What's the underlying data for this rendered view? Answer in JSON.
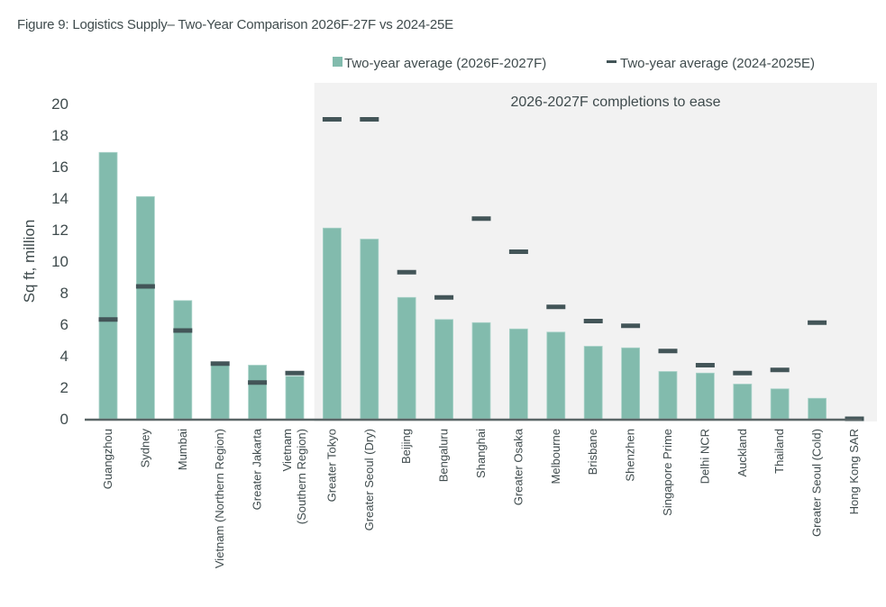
{
  "figure": {
    "title": "Figure 9: Logistics Supply– Two-Year Comparison 2026F-27F vs 2024-25E"
  },
  "colors": {
    "bar": "#82bbad",
    "marker": "#435558",
    "shade": "#f2f2f2",
    "axis": "#5a6667",
    "text": "#3f4b4d"
  },
  "chart_data": {
    "type": "bar",
    "title": "Figure 9: Logistics Supply– Two-Year Comparison 2026F-27F vs 2024-25E",
    "xlabel": "",
    "ylabel": "Sq ft, million",
    "ylim": [
      0,
      20
    ],
    "yticks": [
      0,
      2,
      4,
      6,
      8,
      10,
      12,
      14,
      16,
      18,
      20
    ],
    "grid": false,
    "legend_position": "top-right",
    "annotation": {
      "text": "2026-2027F completions to ease",
      "shaded_from_category": "Greater Tokyo",
      "shaded_to_category": "Hong Kong SAR"
    },
    "categories": [
      "Guangzhou",
      "Sydney",
      "Mumbai",
      "Vietnam (Northern Region)",
      "Greater Jakarta",
      "Vietnam\n(Southern Region)",
      "Greater Tokyo",
      "Greater Seoul (Dry)",
      "Beijing",
      "Bengaluru",
      "Shanghai",
      "Greater Osaka",
      "Melbourne",
      "Brisbane",
      "Shenzhen",
      "Singapore Prime",
      "Delhi NCR",
      "Auckland",
      "Thailand",
      "Greater Seoul (Cold)",
      "Hong Kong SAR"
    ],
    "series": [
      {
        "name": "Two-year average (2026F-2027F)",
        "kind": "bar",
        "values": [
          16.9,
          14.1,
          7.5,
          3.4,
          3.4,
          2.7,
          12.1,
          11.4,
          7.7,
          6.3,
          6.1,
          5.7,
          5.5,
          4.6,
          4.5,
          3.0,
          2.9,
          2.2,
          1.9,
          1.3,
          0.0
        ]
      },
      {
        "name": "Two-year average (2024-2025E)",
        "kind": "marker",
        "values": [
          6.3,
          8.4,
          5.6,
          3.5,
          2.3,
          2.9,
          19.0,
          19.0,
          9.3,
          7.7,
          12.7,
          10.6,
          7.1,
          6.2,
          5.9,
          4.3,
          3.4,
          2.9,
          3.1,
          6.1,
          0.0
        ]
      }
    ]
  }
}
